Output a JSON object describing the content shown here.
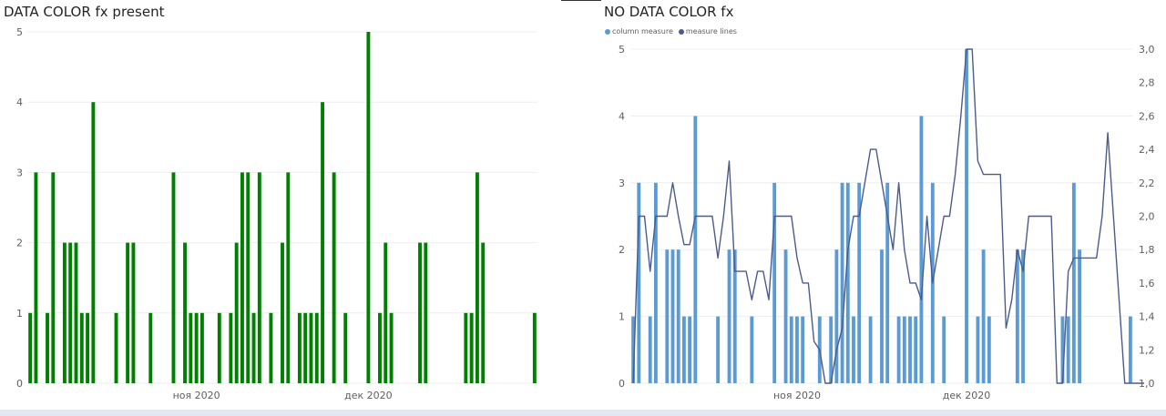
{
  "chart_data": [
    {
      "type": "bar",
      "title": "DATA COLOR fx present",
      "color": "#008000",
      "x_start": "2020-10-03",
      "values": [
        1,
        3,
        0,
        1,
        3,
        0,
        2,
        2,
        2,
        1,
        1,
        4,
        0,
        0,
        0,
        1,
        0,
        2,
        2,
        0,
        0,
        1,
        0,
        0,
        0,
        3,
        0,
        2,
        1,
        1,
        1,
        0,
        0,
        1,
        0,
        1,
        2,
        3,
        3,
        1,
        3,
        0,
        1,
        0,
        2,
        3,
        0,
        1,
        1,
        1,
        1,
        4,
        0,
        3,
        0,
        1,
        0,
        0,
        0,
        5,
        0,
        1,
        2,
        1,
        0,
        0,
        0,
        0,
        2,
        2,
        0,
        0,
        0,
        0,
        0,
        0,
        1,
        1,
        3,
        2,
        0,
        0,
        0,
        0,
        0,
        0,
        0,
        0,
        1
      ],
      "ylim": [
        0,
        5
      ],
      "y_ticks": [
        "0",
        "1",
        "2",
        "3",
        "4",
        "5"
      ],
      "x_tick_labels": [
        {
          "date": "2020-11-01",
          "label": "ноя 2020"
        },
        {
          "date": "2020-12-01",
          "label": "дек 2020"
        }
      ],
      "grid": true,
      "legend": "none"
    },
    {
      "type": "bar",
      "title": "NO DATA COLOR fx",
      "x_start": "2020-10-03",
      "series": [
        {
          "name": "column measure",
          "kind": "bar",
          "axis": "left",
          "color": "#5b9bd5",
          "values": [
            1,
            3,
            0,
            1,
            3,
            0,
            2,
            2,
            2,
            1,
            1,
            4,
            0,
            0,
            0,
            1,
            0,
            2,
            2,
            0,
            0,
            1,
            0,
            0,
            0,
            3,
            0,
            2,
            1,
            1,
            1,
            0,
            0,
            1,
            0,
            1,
            2,
            3,
            3,
            1,
            3,
            0,
            1,
            0,
            2,
            3,
            0,
            1,
            1,
            1,
            1,
            4,
            0,
            3,
            0,
            1,
            0,
            0,
            0,
            5,
            0,
            1,
            2,
            1,
            0,
            0,
            0,
            0,
            2,
            2,
            0,
            0,
            0,
            0,
            0,
            0,
            1,
            1,
            3,
            2,
            0,
            0,
            0,
            0,
            0,
            0,
            0,
            0,
            1
          ]
        },
        {
          "name": "measure lines",
          "kind": "line",
          "axis": "right",
          "color": "#4a5c8f",
          "values": [
            1.0,
            2.0,
            2.0,
            1.67,
            2.0,
            2.0,
            2.0,
            2.2,
            2.0,
            1.83,
            1.83,
            2.0,
            2.0,
            2.0,
            2.0,
            1.75,
            2.0,
            2.33,
            1.67,
            1.67,
            1.67,
            1.5,
            1.67,
            1.67,
            1.5,
            2.0,
            2.0,
            2.0,
            2.0,
            1.75,
            1.6,
            1.6,
            1.25,
            1.2,
            1.0,
            1.0,
            1.2,
            1.33,
            1.8,
            2.0,
            2.0,
            2.2,
            2.4,
            2.4,
            2.2,
            2.0,
            1.8,
            2.2,
            1.8,
            1.6,
            1.6,
            1.5,
            2.0,
            1.6,
            1.8,
            2.0,
            2.0,
            2.25,
            2.6,
            3.0,
            3.0,
            2.33,
            2.25,
            2.25,
            2.25,
            2.25,
            1.33,
            1.5,
            1.8,
            1.67,
            2.0,
            2.0,
            2.0,
            2.0,
            2.0,
            1.0,
            1.0,
            1.67,
            1.75,
            1.75,
            1.75,
            1.75,
            1.75,
            2.0,
            2.5,
            2.0,
            1.5,
            1.0,
            1.0
          ]
        }
      ],
      "ylim": [
        0,
        5
      ],
      "y_ticks": [
        "0",
        "1",
        "2",
        "3",
        "4",
        "5"
      ],
      "y2lim": [
        1.0,
        3.0
      ],
      "y2_ticks": [
        "1,0",
        "1,2",
        "1,4",
        "1,6",
        "1,8",
        "2,0",
        "2,2",
        "2,4",
        "2,6",
        "2,8",
        "3,0"
      ],
      "x_tick_labels": [
        {
          "date": "2020-11-01",
          "label": "ноя 2020"
        },
        {
          "date": "2020-12-01",
          "label": "дек 2020"
        }
      ],
      "grid": true,
      "legend": "top-left"
    }
  ]
}
